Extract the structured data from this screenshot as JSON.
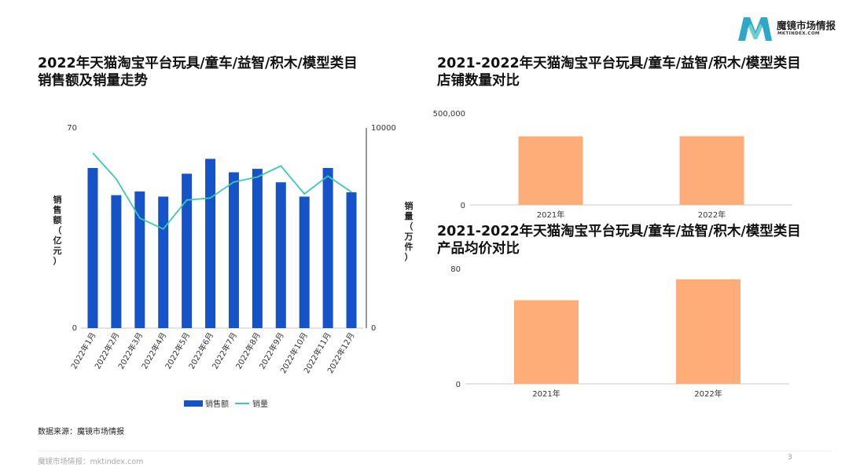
{
  "brand": {
    "name": "魔镜市场情报",
    "sub": "MKTINDEX.COM",
    "colors": [
      "#2fa7c9",
      "#6fd0c8"
    ]
  },
  "titles": {
    "left": [
      "2022年天猫淘宝平台玩具/童车/益智/积木/模型类目",
      "销售额及销量走势"
    ],
    "right_top": [
      "2021-2022年天猫淘宝平台玩具/童车/益智/积木/模型类目",
      "店铺数量对比"
    ],
    "right_bottom": [
      "2021-2022年天猫淘宝平台玩具/童车/益智/积木/模型类目",
      "产品均价对比"
    ]
  },
  "source": "数据来源：魔镜市场情报",
  "footer": "魔镜市场情报：mktindex.com",
  "page_number": "3",
  "colors": {
    "bar_blue": "#1454c8",
    "line_teal": "#3cc8b4",
    "bar_orange": "#ffad78"
  },
  "chart_data": [
    {
      "type": "bar",
      "categories": [
        "2022年1月",
        "2022年2月",
        "2022年3月",
        "2022年4月",
        "2022年5月",
        "2022年6月",
        "2022年7月",
        "2022年8月",
        "2022年9月",
        "2022年10月",
        "2022年11月",
        "2022年12月"
      ],
      "series": [
        {
          "name": "销售额",
          "type": "bar",
          "axis": "left",
          "color": "#1454c8",
          "values": [
            56,
            46.5,
            47.8,
            46,
            54,
            59.2,
            54.5,
            55.7,
            51,
            46,
            56,
            47.5
          ]
        },
        {
          "name": "销量",
          "type": "line",
          "axis": "right",
          "color": "#3cc8b4",
          "values": [
            8750,
            7450,
            5500,
            4950,
            6400,
            6500,
            7300,
            7550,
            8100,
            6700,
            7600,
            6800
          ]
        }
      ],
      "ylabel": "销售额（亿元）",
      "y2label": "销量（万件）",
      "ylim": [
        0,
        70
      ],
      "y2lim": [
        0,
        10000
      ],
      "yticks": [
        "70",
        "0"
      ],
      "y2ticks": [
        "10000",
        "0"
      ],
      "legend": "bottom"
    },
    {
      "type": "bar",
      "categories": [
        "2021年",
        "2022年"
      ],
      "values": [
        373000,
        374000
      ],
      "ylim": [
        0,
        500000
      ],
      "yticks": [
        "500,000",
        "0"
      ],
      "color": "#ffad78"
    },
    {
      "type": "bar",
      "categories": [
        "2021年",
        "2022年"
      ],
      "values": [
        58,
        72.5
      ],
      "ylim": [
        0,
        80
      ],
      "yticks": [
        "80",
        "0"
      ],
      "color": "#ffad78"
    }
  ]
}
